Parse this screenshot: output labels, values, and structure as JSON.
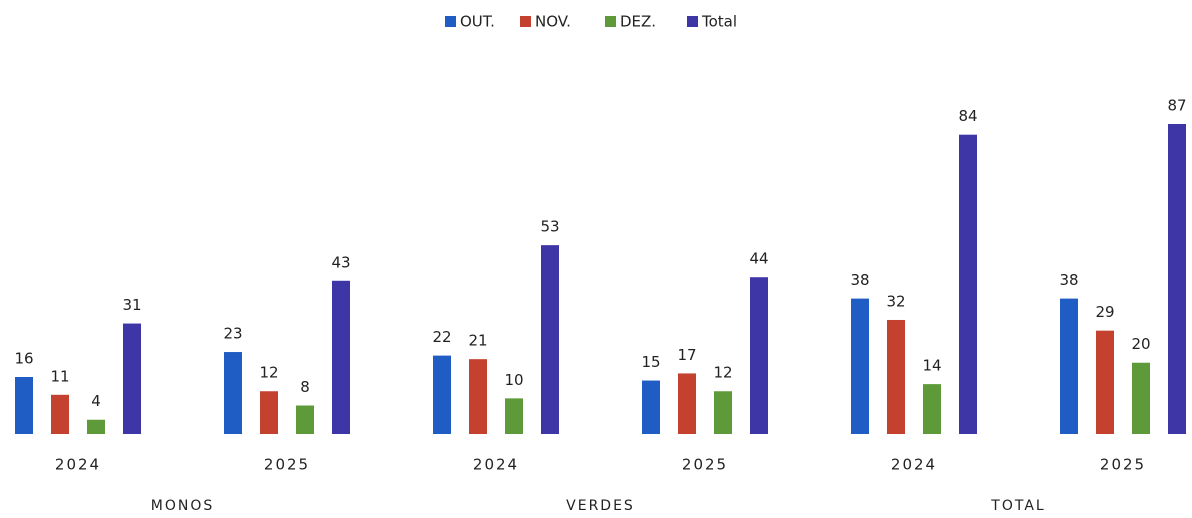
{
  "chart_data": {
    "type": "bar",
    "categories": [
      "2024",
      "2025",
      "2024",
      "2025",
      "2024",
      "2025"
    ],
    "groups": [
      "MONOS",
      "VERDES",
      "TOTAL"
    ],
    "series": [
      {
        "name": "OUT.",
        "color": "#1f5cc4",
        "values": [
          16,
          23,
          22,
          15,
          38,
          38
        ]
      },
      {
        "name": "NOV.",
        "color": "#c4402f",
        "values": [
          11,
          12,
          21,
          17,
          32,
          29
        ]
      },
      {
        "name": "DEZ.",
        "color": "#5f9a3a",
        "values": [
          4,
          8,
          10,
          12,
          14,
          20
        ]
      },
      {
        "name": "Total",
        "color": "#3e36a6",
        "values": [
          31,
          43,
          53,
          44,
          84,
          87
        ]
      }
    ],
    "legend": "top"
  }
}
